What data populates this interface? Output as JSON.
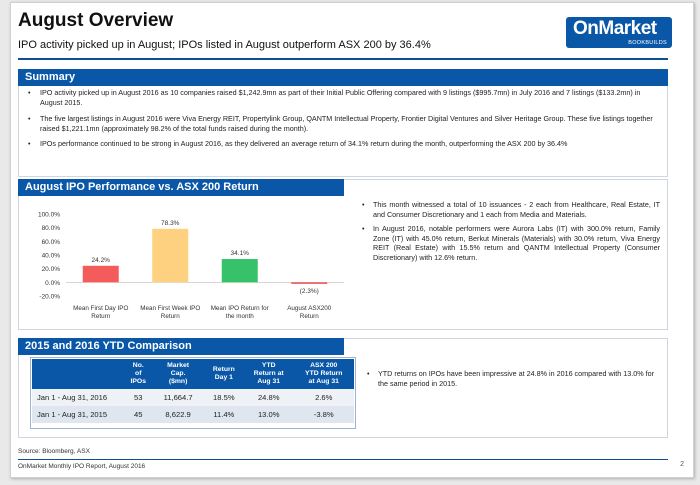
{
  "header": {
    "title": "August Overview",
    "subtitle": "IPO activity picked up in August; IPOs listed in August outperform ASX 200 by 36.4%",
    "logo_main": "OnMarket",
    "logo_sub": "BOOKBUILDS"
  },
  "summary": {
    "heading": "Summary",
    "bullets": [
      "IPO activity picked up in August 2016 as 10 companies raised $1,242.9mn as part of their Initial Public Offering compared with 9 listings ($995.7mn) in July 2016 and 7 listings ($133.2mn) in August 2015.",
      "The five largest listings in August 2016 were Viva Energy REIT, Propertylink Group, QANTM Intellectual Property, Frontier Digital Ventures and Silver Heritage Group. These five listings together raised $1,221.1mn (approximately 98.2% of the total funds raised during the month).",
      "IPOs performance continued to be strong in August 2016, as they delivered an average return of 34.1%  return during the month, outperforming the ASX 200 by 36.4%"
    ]
  },
  "performance": {
    "heading": "August IPO Performance vs. ASX 200 Return",
    "bullets": [
      "This month witnessed a total of 10 issuances - 2 each from Healthcare, Real Estate, IT and Consumer Discretionary and 1 each from Media and Materials.",
      "In August 2016, notable performers were Aurora Labs (IT) with 300.0% return, Family Zone (IT) with 45.0% return, Berkut Minerals (Materials) with 30.0% return, Viva Energy REIT (Real Estate) with 15.5% return and QANTM Intellectual Property (Consumer Discretionary) with 12.6% return."
    ]
  },
  "chart_data": {
    "type": "bar",
    "categories": [
      "Mean First Day IPO Return",
      "Mean First Week IPO Return",
      "Mean IPO Return for the month",
      "August ASX200 Return"
    ],
    "category_lines": [
      [
        "Mean First Day IPO",
        "Return"
      ],
      [
        "Mean First Week IPO",
        "Return"
      ],
      [
        "Mean IPO Return for",
        "the month"
      ],
      [
        "August ASX200",
        "Return"
      ]
    ],
    "values": [
      24.2,
      78.3,
      34.1,
      -2.3
    ],
    "value_labels": [
      "24.2%",
      "78.3%",
      "34.1%",
      "(2.3%)"
    ],
    "colors": [
      "#f45b5b",
      "#fdd17f",
      "#37c26a",
      "#f45b5b"
    ],
    "ylim": [
      -20,
      100
    ],
    "yticks": [
      -20,
      0,
      20,
      40,
      60,
      80,
      100
    ],
    "ytick_labels": [
      "-20.0%",
      "0.0%",
      "20.0%",
      "40.0%",
      "60.0%",
      "80.0%",
      "100.0%"
    ],
    "grid": false
  },
  "ytd": {
    "heading": "2015 and 2016 YTD Comparison",
    "columns": [
      [
        "",
        ""
      ],
      [
        "No.",
        "of",
        "IPOs"
      ],
      [
        "Market",
        "Cap.",
        "($mn)"
      ],
      [
        "Return",
        "Day 1"
      ],
      [
        "YTD",
        "Return at",
        "Aug 31"
      ],
      [
        "ASX 200",
        "YTD Return",
        "at Aug 31"
      ]
    ],
    "rows": [
      [
        "Jan 1 - Aug 31, 2016",
        "53",
        "11,664.7",
        "18.5%",
        "24.8%",
        "2.6%"
      ],
      [
        "Jan 1 - Aug 31, 2015",
        "45",
        "8,622.9",
        "11.4%",
        "13.0%",
        "-3.8%"
      ]
    ],
    "bullet": "YTD returns on IPOs have been impressive at 24.8% in 2016 compared with 13.0% for the same period in 2015."
  },
  "footer": {
    "source": "Source: Bloomberg, ASX",
    "report": "OnMarket Monthly IPO Report, August 2016",
    "page_number": "2"
  }
}
